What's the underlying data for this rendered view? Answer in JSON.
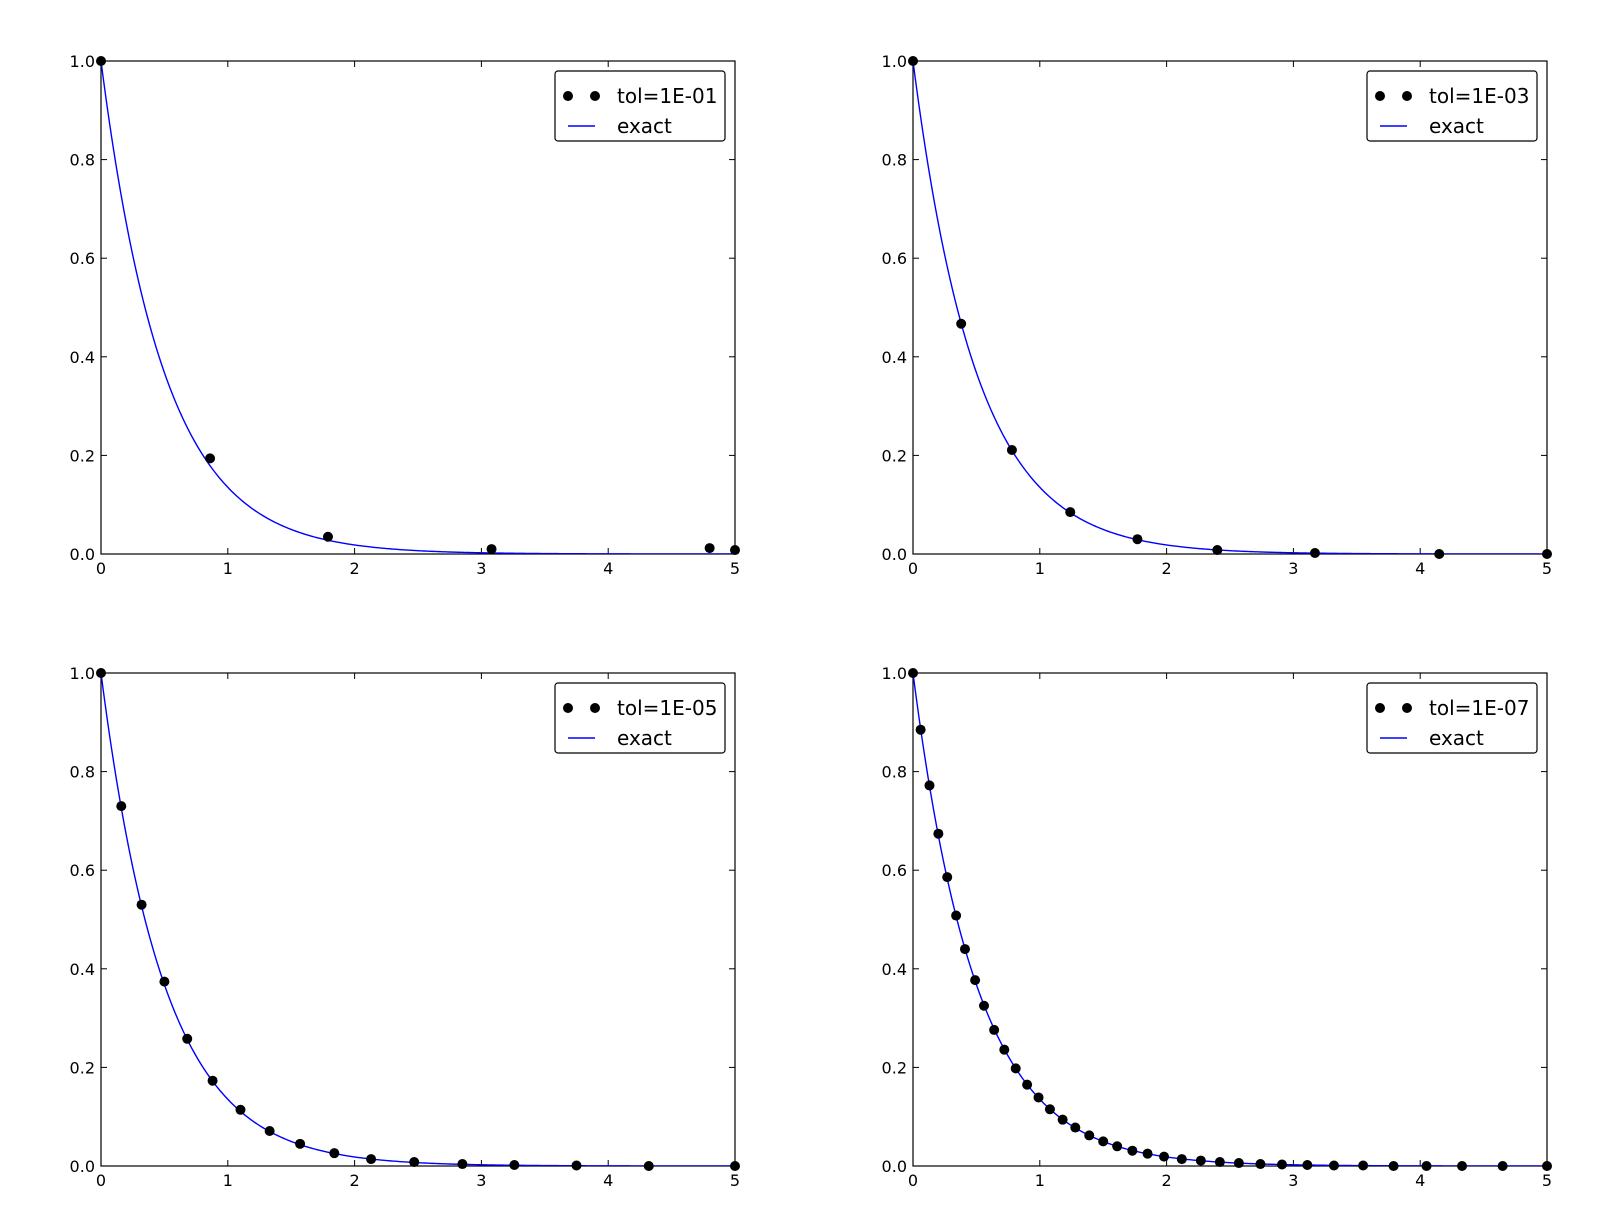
{
  "chart_data": [
    {
      "type": "scatter",
      "xlim": [
        0,
        5
      ],
      "ylim": [
        0,
        1.0
      ],
      "x_ticks": [
        "0",
        "1",
        "2",
        "3",
        "4",
        "5"
      ],
      "y_ticks": [
        "0.0",
        "0.2",
        "0.4",
        "0.6",
        "0.8",
        "1.0"
      ],
      "legend_position": "top-right",
      "series": [
        {
          "name": "tol=1E-01",
          "style": "markers",
          "color": "#000000",
          "x": [
            0,
            0.86,
            1.79,
            3.08,
            4.8,
            5.0
          ],
          "y": [
            1.0,
            0.194,
            0.035,
            0.01,
            0.012,
            0.008
          ]
        },
        {
          "name": "exact",
          "style": "line",
          "color": "#0000ff",
          "function": "exp(-2t)"
        }
      ]
    },
    {
      "type": "scatter",
      "xlim": [
        0,
        5
      ],
      "ylim": [
        0,
        1.0
      ],
      "x_ticks": [
        "0",
        "1",
        "2",
        "3",
        "4",
        "5"
      ],
      "y_ticks": [
        "0.0",
        "0.2",
        "0.4",
        "0.6",
        "0.8",
        "1.0"
      ],
      "legend_position": "top-right",
      "series": [
        {
          "name": "tol=1E-03",
          "style": "markers",
          "color": "#000000",
          "x": [
            0,
            0.38,
            0.78,
            1.24,
            1.77,
            2.4,
            3.17,
            4.15,
            5.0
          ],
          "y": [
            1.0,
            0.467,
            0.211,
            0.085,
            0.03,
            0.008,
            0.002,
            0.0,
            0.0
          ]
        },
        {
          "name": "exact",
          "style": "line",
          "color": "#0000ff",
          "function": "exp(-2t)"
        }
      ]
    },
    {
      "type": "scatter",
      "xlim": [
        0,
        5
      ],
      "ylim": [
        0,
        1.0
      ],
      "x_ticks": [
        "0",
        "1",
        "2",
        "3",
        "4",
        "5"
      ],
      "y_ticks": [
        "0.0",
        "0.2",
        "0.4",
        "0.6",
        "0.8",
        "1.0"
      ],
      "legend_position": "top-right",
      "series": [
        {
          "name": "tol=1E-05",
          "style": "markers",
          "color": "#000000",
          "x": [
            0,
            0.16,
            0.32,
            0.5,
            0.68,
            0.88,
            1.1,
            1.33,
            1.57,
            1.84,
            2.13,
            2.47,
            2.85,
            3.26,
            3.75,
            4.32,
            5.0
          ],
          "y": [
            1.0,
            0.73,
            0.53,
            0.374,
            0.258,
            0.173,
            0.114,
            0.071,
            0.045,
            0.026,
            0.014,
            0.008,
            0.004,
            0.002,
            0.001,
            0.0,
            0.0
          ]
        },
        {
          "name": "exact",
          "style": "line",
          "color": "#0000ff",
          "function": "exp(-2t)"
        }
      ]
    },
    {
      "type": "scatter",
      "xlim": [
        0,
        5
      ],
      "ylim": [
        0,
        1.0
      ],
      "x_ticks": [
        "0",
        "1",
        "2",
        "3",
        "4",
        "5"
      ],
      "y_ticks": [
        "0.0",
        "0.2",
        "0.4",
        "0.6",
        "0.8",
        "1.0"
      ],
      "legend_position": "top-right",
      "series": [
        {
          "name": "tol=1E-07",
          "style": "markers",
          "color": "#000000",
          "x": [
            0,
            0.06,
            0.13,
            0.2,
            0.27,
            0.34,
            0.41,
            0.49,
            0.56,
            0.64,
            0.72,
            0.81,
            0.9,
            0.99,
            1.08,
            1.18,
            1.28,
            1.39,
            1.5,
            1.61,
            1.73,
            1.85,
            1.98,
            2.12,
            2.27,
            2.42,
            2.57,
            2.74,
            2.91,
            3.11,
            3.32,
            3.55,
            3.79,
            4.05,
            4.33,
            4.65,
            5.0
          ],
          "y": [
            1.0,
            0.885,
            0.772,
            0.674,
            0.586,
            0.508,
            0.44,
            0.377,
            0.325,
            0.276,
            0.236,
            0.198,
            0.165,
            0.139,
            0.115,
            0.094,
            0.078,
            0.062,
            0.05,
            0.04,
            0.031,
            0.025,
            0.019,
            0.014,
            0.011,
            0.008,
            0.006,
            0.004,
            0.003,
            0.002,
            0.001,
            0.001,
            0.0,
            0.0,
            0.0,
            0.0,
            0.0
          ]
        },
        {
          "name": "exact",
          "style": "line",
          "color": "#0000ff",
          "function": "exp(-2t)"
        }
      ]
    }
  ]
}
